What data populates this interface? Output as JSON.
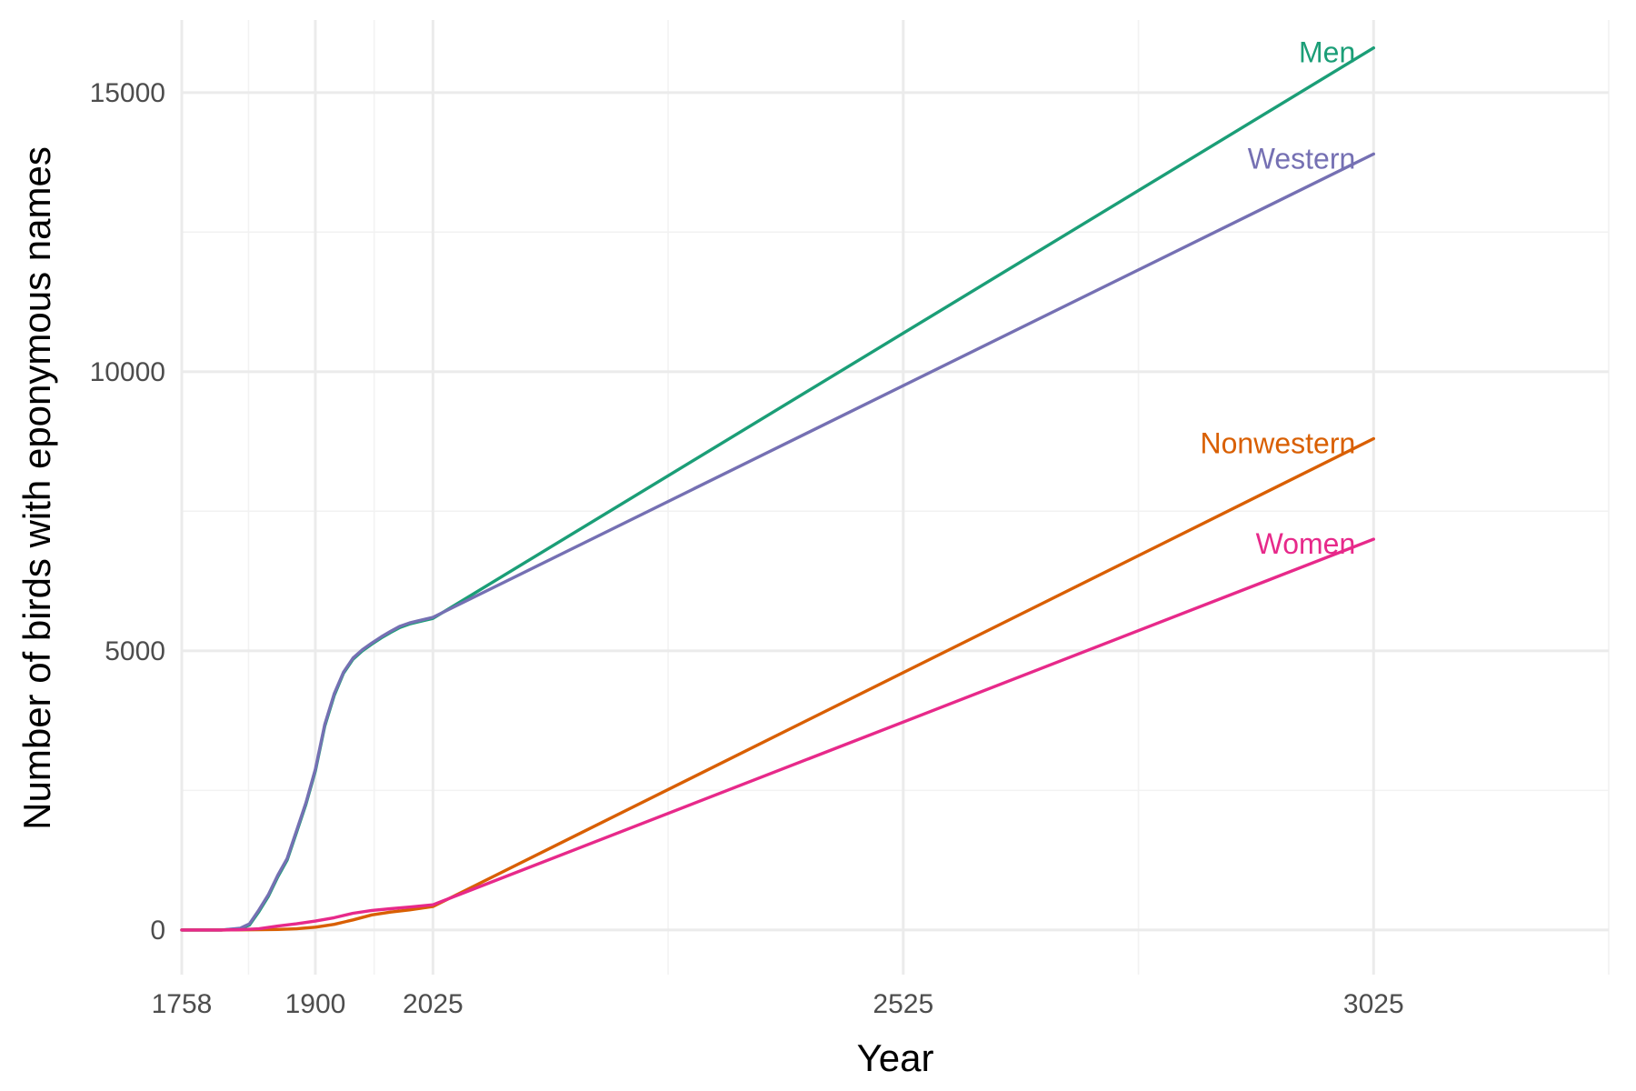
{
  "chart_data": {
    "type": "line",
    "xlabel": "Year",
    "ylabel": "Number of  birds with eponymous names",
    "x_ticks": [
      1758,
      1900,
      2025,
      2525,
      3025
    ],
    "y_ticks": [
      0,
      5000,
      10000,
      15000
    ],
    "xlim": [
      1758,
      3275
    ],
    "ylim": [
      -800,
      16300
    ],
    "grid": true,
    "legend": "direct labels at line ends",
    "series": [
      {
        "name": "Men",
        "color": "#1b9e77",
        "x": [
          1758,
          1800,
          1820,
          1830,
          1840,
          1850,
          1860,
          1870,
          1880,
          1890,
          1900,
          1910,
          1920,
          1930,
          1940,
          1950,
          1960,
          1970,
          1980,
          1990,
          2000,
          2010,
          2025,
          3025
        ],
        "y": [
          0,
          0,
          20,
          90,
          330,
          600,
          950,
          1250,
          1750,
          2250,
          2850,
          3650,
          4200,
          4600,
          4850,
          5000,
          5120,
          5230,
          5330,
          5420,
          5480,
          5520,
          5580,
          15800
        ]
      },
      {
        "name": "Western",
        "color": "#7570b3",
        "x": [
          1758,
          1800,
          1820,
          1830,
          1840,
          1850,
          1860,
          1870,
          1880,
          1890,
          1900,
          1910,
          1920,
          1930,
          1940,
          1950,
          1960,
          1970,
          1980,
          1990,
          2000,
          2010,
          2025,
          3025
        ],
        "y": [
          0,
          0,
          30,
          110,
          360,
          630,
          980,
          1280,
          1780,
          2280,
          2880,
          3680,
          4230,
          4620,
          4870,
          5020,
          5140,
          5250,
          5350,
          5440,
          5500,
          5540,
          5600,
          13900
        ]
      },
      {
        "name": "Nonwestern",
        "color": "#d95f02",
        "x": [
          1758,
          1800,
          1840,
          1860,
          1880,
          1900,
          1920,
          1940,
          1960,
          1980,
          2000,
          2025,
          3025
        ],
        "y": [
          0,
          0,
          5,
          10,
          20,
          50,
          100,
          180,
          270,
          320,
          360,
          420,
          8800
        ]
      },
      {
        "name": "Women",
        "color": "#e7298a",
        "x": [
          1758,
          1800,
          1820,
          1840,
          1860,
          1880,
          1900,
          1920,
          1940,
          1960,
          1980,
          2000,
          2025,
          3025
        ],
        "y": [
          0,
          0,
          5,
          20,
          70,
          110,
          160,
          220,
          300,
          350,
          380,
          410,
          450,
          7000
        ]
      }
    ]
  }
}
